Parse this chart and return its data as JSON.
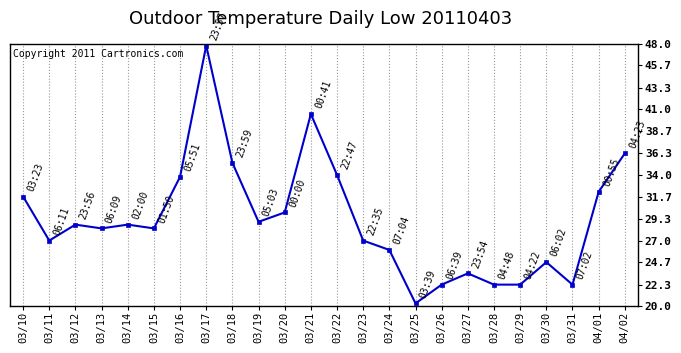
{
  "title": "Outdoor Temperature Daily Low 20110403",
  "copyright_text": "Copyright 2011 Cartronics.com",
  "x_labels": [
    "03/10",
    "03/11",
    "03/12",
    "03/13",
    "03/14",
    "03/15",
    "03/16",
    "03/17",
    "03/18",
    "03/19",
    "03/20",
    "03/21",
    "03/22",
    "03/23",
    "03/24",
    "03/25",
    "03/26",
    "03/27",
    "03/28",
    "03/29",
    "03/30",
    "03/31",
    "04/01",
    "04/02"
  ],
  "y_values": [
    31.7,
    27.0,
    28.7,
    28.3,
    28.7,
    28.3,
    33.8,
    47.8,
    35.3,
    29.0,
    30.0,
    40.5,
    34.0,
    27.0,
    26.0,
    20.3,
    22.3,
    23.5,
    22.3,
    22.3,
    24.7,
    22.3,
    32.2,
    36.3
  ],
  "annotations": [
    "03:23",
    "06:11",
    "23:56",
    "06:09",
    "02:00",
    "01:50",
    "05:51",
    "23:57",
    "23:59",
    "05:03",
    "00:00",
    "00:41",
    "22:47",
    "22:35",
    "07:04",
    "03:39",
    "06:39",
    "23:54",
    "04:48",
    "04:22",
    "06:02",
    "07:02",
    "00:55",
    "04:23"
  ],
  "ylim": [
    20.0,
    48.0
  ],
  "yticks": [
    20.0,
    22.3,
    24.7,
    27.0,
    29.3,
    31.7,
    34.0,
    36.3,
    38.7,
    41.0,
    43.3,
    45.7,
    48.0
  ],
  "line_color": "#0000cc",
  "marker_color": "#0000cc",
  "bg_color": "#ffffff",
  "grid_color": "#aaaaaa",
  "title_fontsize": 13,
  "annotation_fontsize": 7,
  "xlabel_fontsize": 7.5,
  "ylabel_fontsize": 8,
  "copyright_fontsize": 7
}
